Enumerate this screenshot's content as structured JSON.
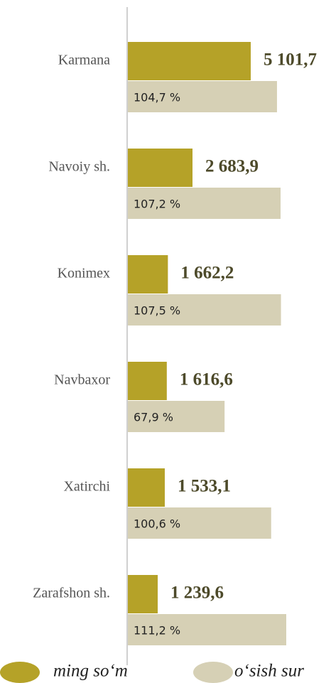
{
  "chart_data": {
    "type": "bar",
    "orientation": "horizontal",
    "categories": [
      "Karmana",
      "Navoiy sh.",
      "Konimex",
      "Navbaxor",
      "Xatirchi",
      "Zarafshon sh."
    ],
    "series": [
      {
        "name": "ming so‘m",
        "color": "#b5a228",
        "values": [
          5101.7,
          2683.9,
          1662.2,
          1616.6,
          1533.1,
          1239.6
        ],
        "value_labels": [
          "5 101,7",
          "2 683,9",
          "1 662,2",
          "1 616,6",
          "1 533,1",
          "1 239,6"
        ]
      },
      {
        "name": "o‘sish sur",
        "color": "#d6d0b5",
        "values": [
          104.7,
          107.2,
          107.5,
          67.9,
          100.6,
          111.2
        ],
        "value_labels": [
          "104,7 %",
          "107,2 %",
          "107,5 %",
          "67,9 %",
          "100,6 %",
          "111,2 %"
        ]
      }
    ]
  }
}
